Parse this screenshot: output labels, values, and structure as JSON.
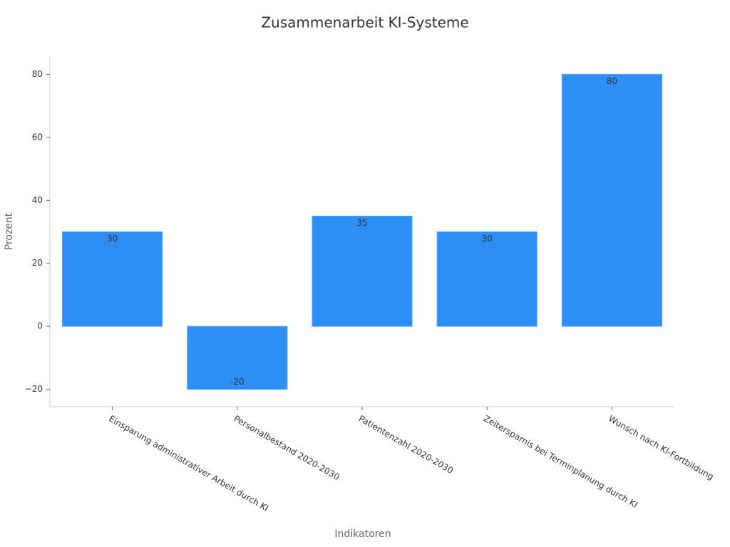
{
  "chart_data": {
    "type": "bar",
    "title": "Zusammenarbeit KI-Systeme",
    "x_label": "Indikatoren",
    "y_label": "Prozent",
    "categories": [
      "Einsparung administrativer Arbeit durch KI",
      "Personalbestand 2020-2030",
      "Patientenzahl 2020-2030",
      "Zeitersparnis bei Terminplanung durch KI",
      "Wunsch nach KI-Fortbildung"
    ],
    "values": [
      30,
      -20,
      35,
      30,
      80
    ],
    "color": "#2d8ff5",
    "ylim": [
      -25.5,
      85.5
    ],
    "yticks": [
      {
        "value": -20,
        "label": "−20"
      },
      0,
      20,
      40,
      60,
      80
    ],
    "grid": false
  }
}
